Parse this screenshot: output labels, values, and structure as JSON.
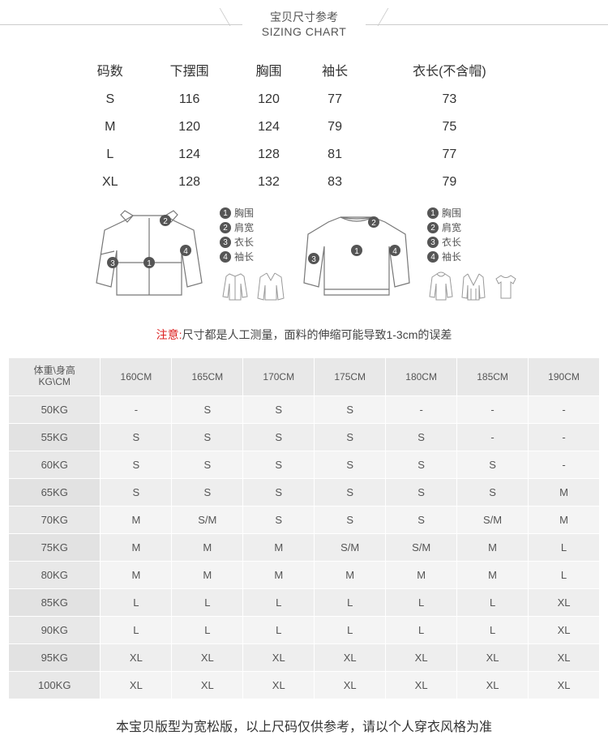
{
  "title": {
    "cn": "宝贝尺寸参考",
    "en": "SIZING CHART"
  },
  "size_table": {
    "type": "table",
    "columns": [
      "码数",
      "下摆围",
      "胸围",
      "袖长",
      "衣长(不含帽)"
    ],
    "rows": [
      [
        "S",
        "116",
        "120",
        "77",
        "73"
      ],
      [
        "M",
        "120",
        "124",
        "79",
        "75"
      ],
      [
        "L",
        "124",
        "128",
        "81",
        "77"
      ],
      [
        "XL",
        "128",
        "132",
        "83",
        "79"
      ]
    ]
  },
  "diagram_legend": {
    "items": [
      {
        "num": "1",
        "label": "胸围"
      },
      {
        "num": "2",
        "label": "肩宽"
      },
      {
        "num": "3",
        "label": "衣长"
      },
      {
        "num": "4",
        "label": "袖长"
      }
    ]
  },
  "notice": {
    "prefix": "注意:",
    "text": "尺寸都是人工测量，面料的伸缩可能导致1-3cm的误差"
  },
  "rec_table": {
    "type": "table",
    "corner_top": "体重\\身高",
    "corner_bottom": "KG\\CM",
    "columns": [
      "160CM",
      "165CM",
      "170CM",
      "175CM",
      "180CM",
      "185CM",
      "190CM"
    ],
    "row_headers": [
      "50KG",
      "55KG",
      "60KG",
      "65KG",
      "70KG",
      "75KG",
      "80KG",
      "85KG",
      "90KG",
      "95KG",
      "100KG"
    ],
    "rows": [
      [
        "-",
        "S",
        "S",
        "S",
        "-",
        "-",
        "-"
      ],
      [
        "S",
        "S",
        "S",
        "S",
        "S",
        "-",
        "-"
      ],
      [
        "S",
        "S",
        "S",
        "S",
        "S",
        "S",
        "-"
      ],
      [
        "S",
        "S",
        "S",
        "S",
        "S",
        "S",
        "M"
      ],
      [
        "M",
        "S/M",
        "S",
        "S",
        "S",
        "S/M",
        "M"
      ],
      [
        "M",
        "M",
        "M",
        "S/M",
        "S/M",
        "M",
        "L"
      ],
      [
        "M",
        "M",
        "M",
        "M",
        "M",
        "M",
        "L"
      ],
      [
        "L",
        "L",
        "L",
        "L",
        "L",
        "L",
        "XL"
      ],
      [
        "L",
        "L",
        "L",
        "L",
        "L",
        "L",
        "XL"
      ],
      [
        "XL",
        "XL",
        "XL",
        "XL",
        "XL",
        "XL",
        "XL"
      ],
      [
        "XL",
        "XL",
        "XL",
        "XL",
        "XL",
        "XL",
        "XL"
      ]
    ],
    "colors": {
      "header_bg": "#e8e8e8",
      "row_bg_odd": "#f4f4f4",
      "row_bg_even": "#eeeeee",
      "border": "#ffffff",
      "text": "#555555"
    }
  },
  "footer": "本宝贝版型为宽松版，以上尺码仅供参考，请以个人穿衣风格为准"
}
